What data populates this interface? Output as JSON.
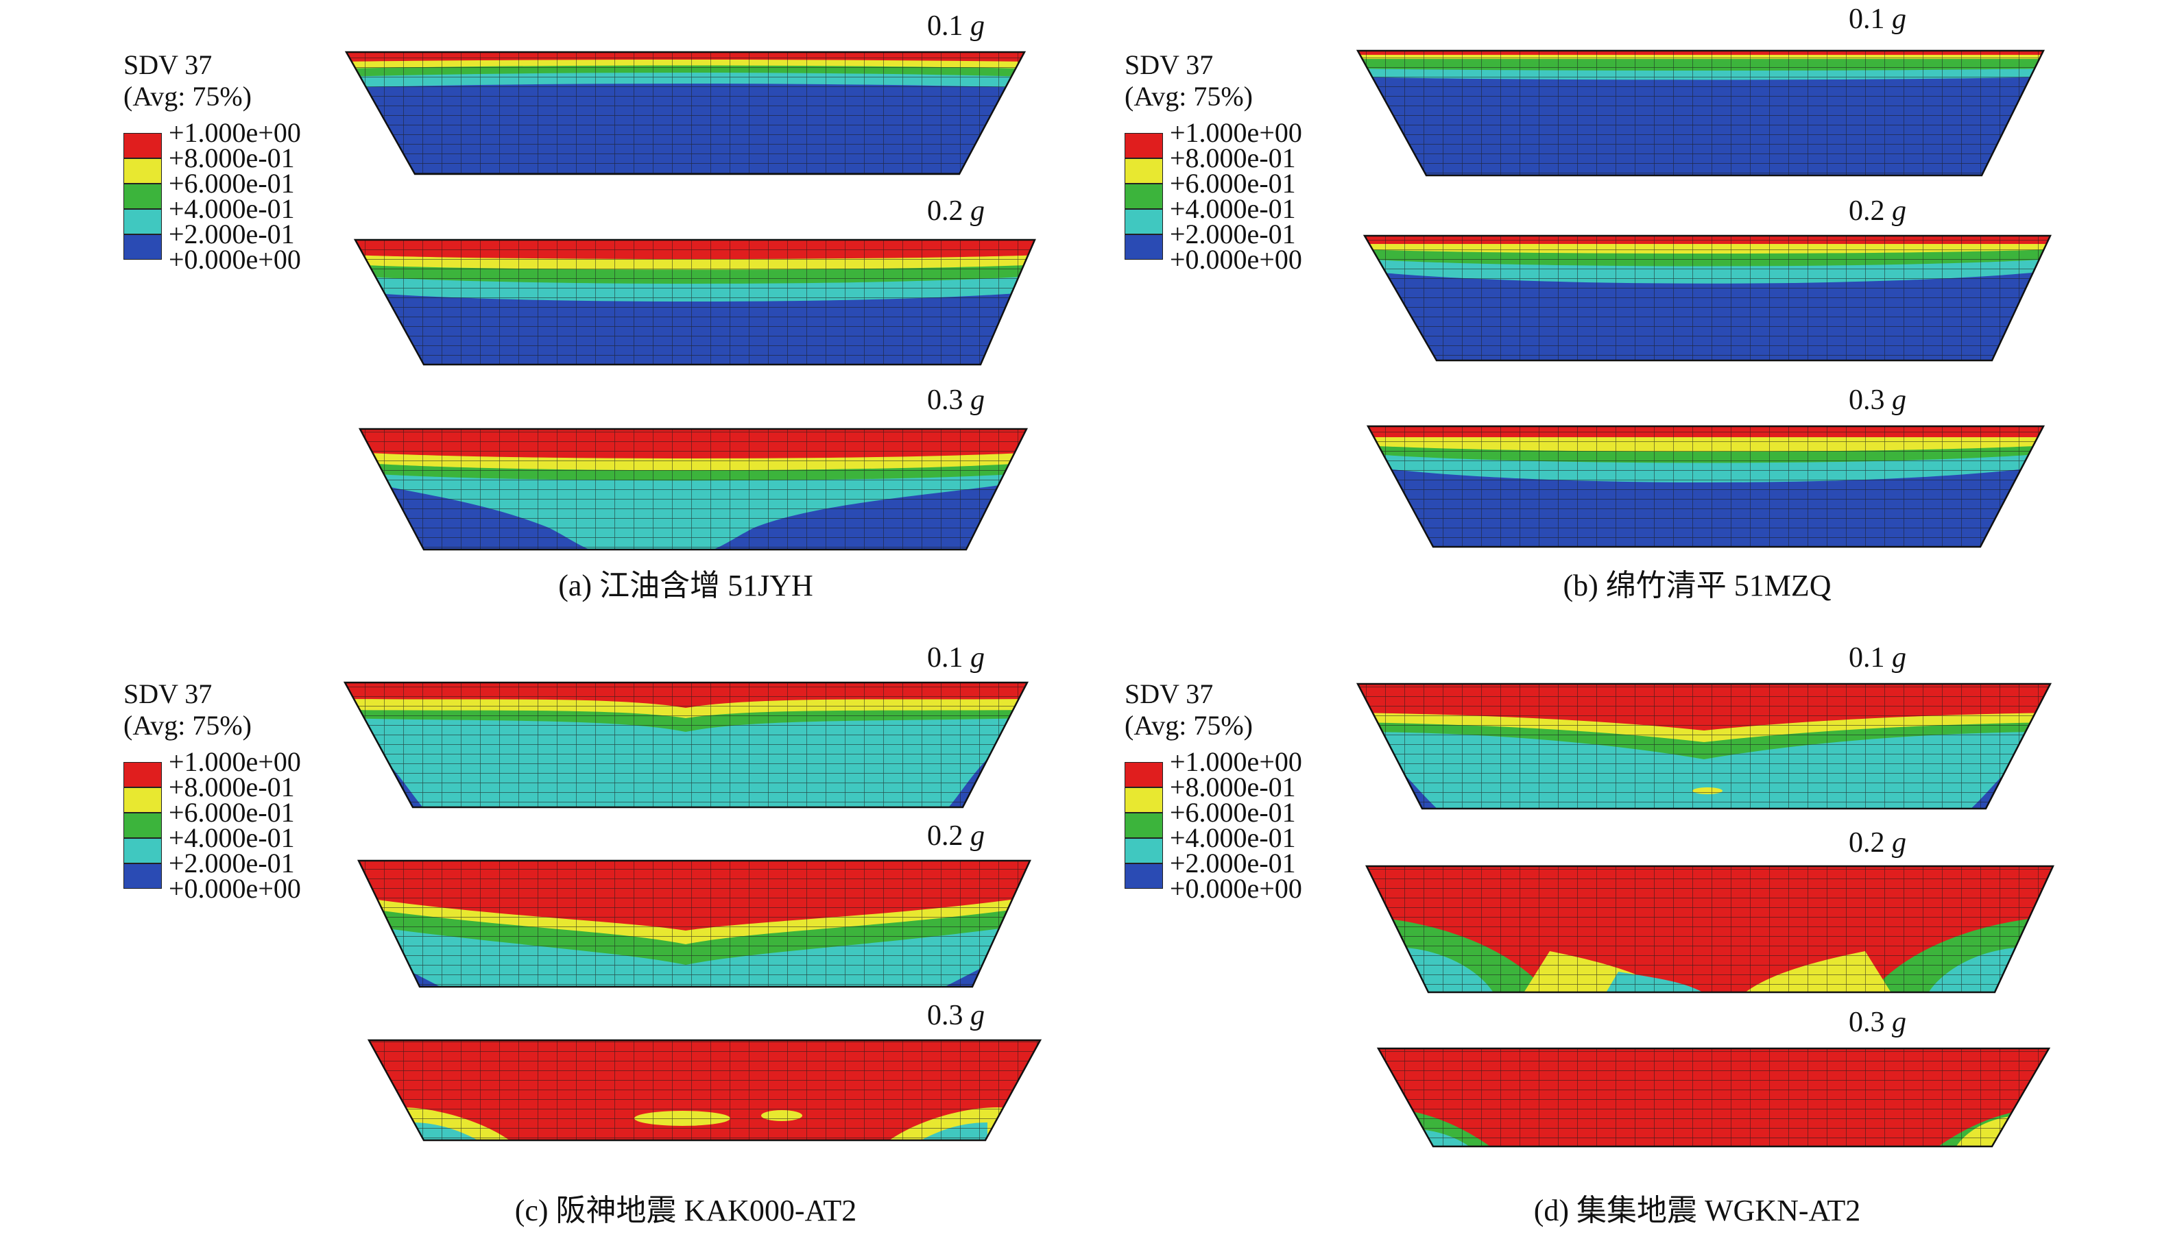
{
  "legend": {
    "title": "SDV 37",
    "subtitle": "(Avg: 75%)",
    "ticks": [
      "+1.000e+00",
      "+8.000e-01",
      "+6.000e-01",
      "+4.000e-01",
      "+2.000e-01",
      "+0.000e+00"
    ],
    "colors": [
      "#e01e1e",
      "#e8e830",
      "#3cb43c",
      "#40c8c0",
      "#2a4bb4"
    ]
  },
  "g_unit": "g",
  "intensities": [
    "0.1",
    "0.2",
    "0.3"
  ],
  "panels": [
    {
      "caption": "(a) 江油含增 51JYH"
    },
    {
      "caption": "(b) 绵竹清平 51MZQ"
    },
    {
      "caption": "(c) 阪神地震 KAK000-AT2"
    },
    {
      "caption": "(d) 集集地震 WGKN-AT2"
    }
  ]
}
